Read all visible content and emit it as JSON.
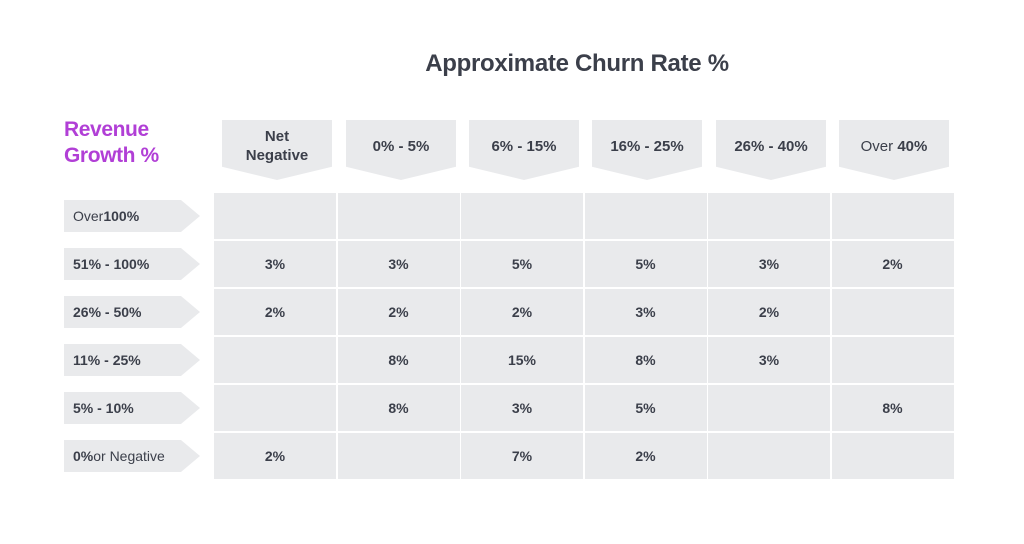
{
  "chart_data": {
    "type": "table",
    "title": "Approximate Churn Rate %",
    "row_axis_label": [
      "Revenue",
      "Growth %"
    ],
    "columns": [
      {
        "parts": [
          [
            "Net",
            false
          ],
          [
            "Negative",
            false
          ]
        ],
        "bold_all": true,
        "two_line": true
      },
      {
        "parts": [
          [
            "0% - 5%",
            true
          ]
        ],
        "bold_all": true
      },
      {
        "parts": [
          [
            "6% - 15%",
            true
          ]
        ],
        "bold_all": true
      },
      {
        "parts": [
          [
            "16% - 25%",
            true
          ]
        ],
        "bold_all": true
      },
      {
        "parts": [
          [
            "26% - 40%",
            true
          ]
        ],
        "bold_all": true
      },
      {
        "parts": [
          [
            "Over ",
            false
          ],
          [
            "40%",
            true
          ]
        ],
        "bold_all": false
      }
    ],
    "rows": [
      {
        "parts": [
          [
            "Over ",
            false
          ],
          [
            "100%",
            true
          ]
        ],
        "bold_all": false
      },
      {
        "parts": [
          [
            "51% - 100%",
            true
          ]
        ],
        "bold_all": true
      },
      {
        "parts": [
          [
            "26% - 50%",
            true
          ]
        ],
        "bold_all": true
      },
      {
        "parts": [
          [
            "11% - 25%",
            true
          ]
        ],
        "bold_all": true
      },
      {
        "parts": [
          [
            "5% - 10%",
            true
          ]
        ],
        "bold_all": true
      },
      {
        "parts": [
          [
            "0%",
            true
          ],
          [
            " or Negative",
            false
          ]
        ],
        "bold_all": false
      }
    ],
    "cells": [
      [
        "",
        "",
        "",
        "",
        "",
        ""
      ],
      [
        "3%",
        "3%",
        "5%",
        "5%",
        "3%",
        "2%"
      ],
      [
        "2%",
        "2%",
        "2%",
        "3%",
        "2%",
        ""
      ],
      [
        "",
        "8%",
        "15%",
        "8%",
        "3%",
        ""
      ],
      [
        "",
        "8%",
        "3%",
        "5%",
        "",
        "8%"
      ],
      [
        "2%",
        "",
        "7%",
        "2%",
        "",
        ""
      ]
    ]
  }
}
